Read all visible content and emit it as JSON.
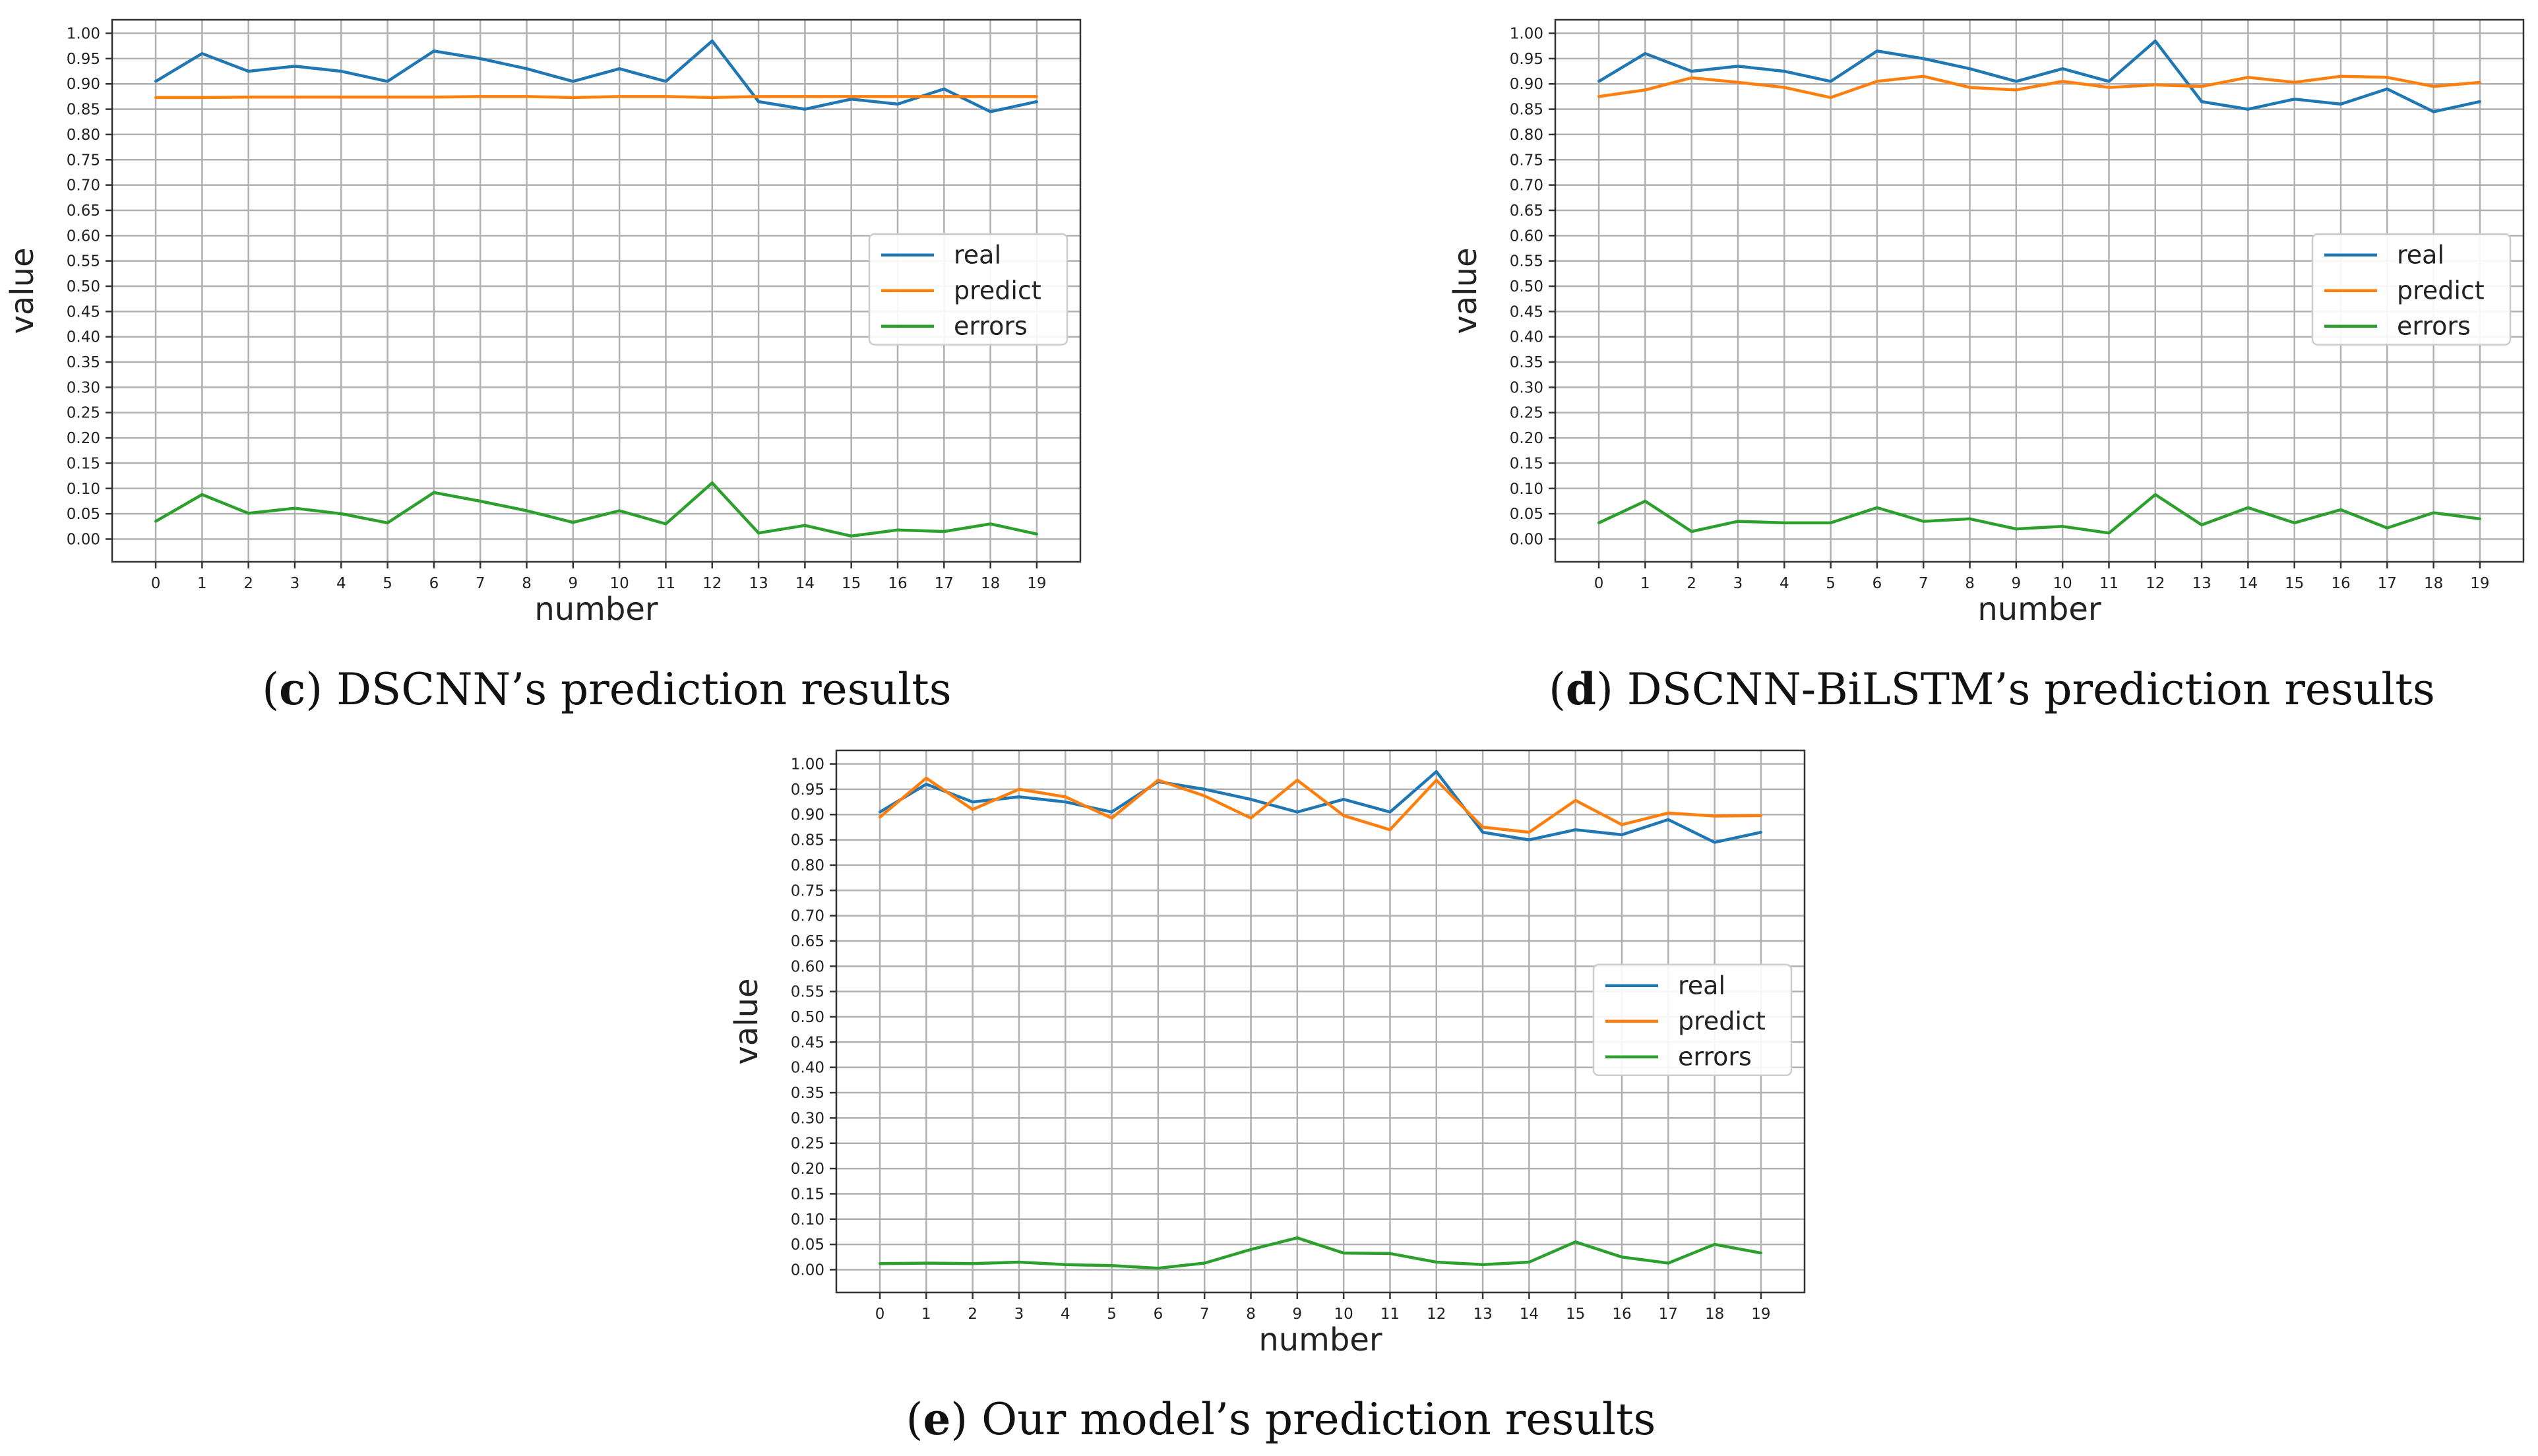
{
  "chart_data": [
    {
      "type": "line",
      "panel": "c",
      "caption_label": "c",
      "caption_text": "DSCNN’s prediction results",
      "xlabel": "number",
      "ylabel": "value",
      "x": [
        0,
        1,
        2,
        3,
        4,
        5,
        6,
        7,
        8,
        9,
        10,
        11,
        12,
        13,
        14,
        15,
        16,
        17,
        18,
        19
      ],
      "xticks": [
        "0",
        "1",
        "2",
        "3",
        "4",
        "5",
        "6",
        "7",
        "8",
        "9",
        "10",
        "11",
        "12",
        "13",
        "14",
        "15",
        "16",
        "17",
        "18",
        "19"
      ],
      "ylim": [
        0.0,
        1.0
      ],
      "yticks": [
        "0.00",
        "0.05",
        "0.10",
        "0.15",
        "0.20",
        "0.25",
        "0.30",
        "0.35",
        "0.40",
        "0.45",
        "0.50",
        "0.55",
        "0.60",
        "0.65",
        "0.70",
        "0.75",
        "0.80",
        "0.85",
        "0.90",
        "0.95",
        "1.00"
      ],
      "grid": true,
      "legend": "center-right",
      "series": [
        {
          "name": "real",
          "color": "#1f77b4",
          "values": [
            0.905,
            0.96,
            0.925,
            0.935,
            0.925,
            0.905,
            0.965,
            0.95,
            0.93,
            0.905,
            0.93,
            0.905,
            0.985,
            0.865,
            0.85,
            0.87,
            0.86,
            0.89,
            0.845,
            0.865
          ]
        },
        {
          "name": "predict",
          "color": "#ff7f0e",
          "values": [
            0.873,
            0.873,
            0.874,
            0.874,
            0.874,
            0.874,
            0.874,
            0.875,
            0.875,
            0.873,
            0.875,
            0.875,
            0.873,
            0.875,
            0.875,
            0.875,
            0.875,
            0.875,
            0.875,
            0.875
          ]
        },
        {
          "name": "errors",
          "color": "#2ca02c",
          "values": [
            0.035,
            0.088,
            0.051,
            0.061,
            0.05,
            0.032,
            0.092,
            0.075,
            0.056,
            0.033,
            0.056,
            0.03,
            0.111,
            0.012,
            0.027,
            0.006,
            0.018,
            0.015,
            0.03,
            0.01
          ]
        }
      ]
    },
    {
      "type": "line",
      "panel": "d",
      "caption_label": "d",
      "caption_text": "DSCNN-BiLSTM’s prediction results",
      "xlabel": "number",
      "ylabel": "value",
      "x": [
        0,
        1,
        2,
        3,
        4,
        5,
        6,
        7,
        8,
        9,
        10,
        11,
        12,
        13,
        14,
        15,
        16,
        17,
        18,
        19
      ],
      "xticks": [
        "0",
        "1",
        "2",
        "3",
        "4",
        "5",
        "6",
        "7",
        "8",
        "9",
        "10",
        "11",
        "12",
        "13",
        "14",
        "15",
        "16",
        "17",
        "18",
        "19"
      ],
      "ylim": [
        0.0,
        1.0
      ],
      "yticks": [
        "0.00",
        "0.05",
        "0.10",
        "0.15",
        "0.20",
        "0.25",
        "0.30",
        "0.35",
        "0.40",
        "0.45",
        "0.50",
        "0.55",
        "0.60",
        "0.65",
        "0.70",
        "0.75",
        "0.80",
        "0.85",
        "0.90",
        "0.95",
        "1.00"
      ],
      "grid": true,
      "legend": "center-right",
      "series": [
        {
          "name": "real",
          "color": "#1f77b4",
          "values": [
            0.905,
            0.96,
            0.925,
            0.935,
            0.925,
            0.905,
            0.965,
            0.95,
            0.93,
            0.905,
            0.93,
            0.905,
            0.985,
            0.865,
            0.85,
            0.87,
            0.86,
            0.89,
            0.845,
            0.865
          ]
        },
        {
          "name": "predict",
          "color": "#ff7f0e",
          "values": [
            0.875,
            0.888,
            0.912,
            0.903,
            0.893,
            0.873,
            0.905,
            0.915,
            0.893,
            0.888,
            0.905,
            0.893,
            0.898,
            0.895,
            0.913,
            0.903,
            0.915,
            0.913,
            0.895,
            0.903
          ]
        },
        {
          "name": "errors",
          "color": "#2ca02c",
          "values": [
            0.032,
            0.075,
            0.015,
            0.035,
            0.032,
            0.032,
            0.062,
            0.035,
            0.04,
            0.02,
            0.025,
            0.012,
            0.088,
            0.028,
            0.062,
            0.032,
            0.058,
            0.022,
            0.052,
            0.04
          ]
        }
      ]
    },
    {
      "type": "line",
      "panel": "e",
      "caption_label": "e",
      "caption_text": "Our model’s prediction results",
      "xlabel": "number",
      "ylabel": "value",
      "x": [
        0,
        1,
        2,
        3,
        4,
        5,
        6,
        7,
        8,
        9,
        10,
        11,
        12,
        13,
        14,
        15,
        16,
        17,
        18,
        19
      ],
      "xticks": [
        "0",
        "1",
        "2",
        "3",
        "4",
        "5",
        "6",
        "7",
        "8",
        "9",
        "10",
        "11",
        "12",
        "13",
        "14",
        "15",
        "16",
        "17",
        "18",
        "19"
      ],
      "ylim": [
        0.0,
        1.0
      ],
      "yticks": [
        "0.00",
        "0.05",
        "0.10",
        "0.15",
        "0.20",
        "0.25",
        "0.30",
        "0.35",
        "0.40",
        "0.45",
        "0.50",
        "0.55",
        "0.60",
        "0.65",
        "0.70",
        "0.75",
        "0.80",
        "0.85",
        "0.90",
        "0.95",
        "1.00"
      ],
      "grid": true,
      "legend": "center-right",
      "series": [
        {
          "name": "real",
          "color": "#1f77b4",
          "values": [
            0.905,
            0.96,
            0.925,
            0.935,
            0.925,
            0.905,
            0.965,
            0.95,
            0.93,
            0.905,
            0.93,
            0.905,
            0.985,
            0.865,
            0.85,
            0.87,
            0.86,
            0.89,
            0.845,
            0.865
          ]
        },
        {
          "name": "predict",
          "color": "#ff7f0e",
          "values": [
            0.895,
            0.972,
            0.91,
            0.95,
            0.935,
            0.893,
            0.968,
            0.937,
            0.893,
            0.968,
            0.898,
            0.87,
            0.968,
            0.875,
            0.865,
            0.928,
            0.88,
            0.903,
            0.897,
            0.898
          ]
        },
        {
          "name": "errors",
          "color": "#2ca02c",
          "values": [
            0.012,
            0.013,
            0.012,
            0.015,
            0.01,
            0.008,
            0.003,
            0.013,
            0.04,
            0.063,
            0.033,
            0.032,
            0.015,
            0.01,
            0.015,
            0.055,
            0.025,
            0.013,
            0.05,
            0.033
          ]
        }
      ]
    }
  ]
}
